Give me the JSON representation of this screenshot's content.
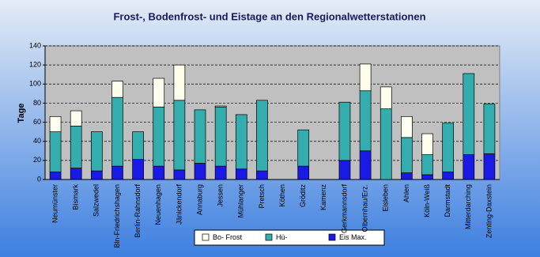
{
  "chart_data": {
    "type": "bar",
    "stacked": true,
    "title": "Frost-, Bodenfrost- und Eistage an den Regionalwetterstationen",
    "y_label": "Tage",
    "categories": [
      "Neumünster",
      "Bismark",
      "Salzwedel",
      "Bln-Friedrichshagen",
      "Berlin-Rahnsdorf",
      "Neuenhagen",
      "Jänickendorf",
      "Annaburg",
      "Jessen",
      "Mühlanger",
      "Pretsch",
      "Köthen",
      "Gröditz",
      "Kamenz",
      "Gerkmannsdorf",
      "Olbernhau/Erz.",
      "Eisleben",
      "Ahlen",
      "Köln-Weiß",
      "Darmstadt",
      "Mitterdarching",
      "Zenting-Daxstein"
    ],
    "series": [
      {
        "name": "Eis Max.",
        "color": "#1a1ae6",
        "values": [
          8,
          12,
          9,
          14,
          21,
          14,
          10,
          17,
          14,
          11,
          9,
          null,
          14,
          null,
          20,
          30,
          0,
          7,
          5,
          8,
          26,
          27
        ]
      },
      {
        "name": "Hü-",
        "color": "#33adad",
        "values": [
          42,
          44,
          41,
          72,
          29,
          62,
          73,
          56,
          62,
          57,
          74,
          null,
          38,
          null,
          61,
          63,
          74,
          37,
          21,
          51,
          85,
          52
        ]
      },
      {
        "name": "Bo- Frost",
        "color": "#ffffee",
        "values": [
          16,
          16,
          0,
          17,
          0,
          30,
          37,
          0,
          1,
          0,
          0,
          null,
          0,
          null,
          0,
          28,
          23,
          22,
          22,
          0,
          0,
          0
        ]
      }
    ],
    "ylim": [
      0,
      140
    ],
    "yticks": [
      0,
      20,
      40,
      60,
      80,
      100,
      120,
      140
    ],
    "grid": true
  }
}
